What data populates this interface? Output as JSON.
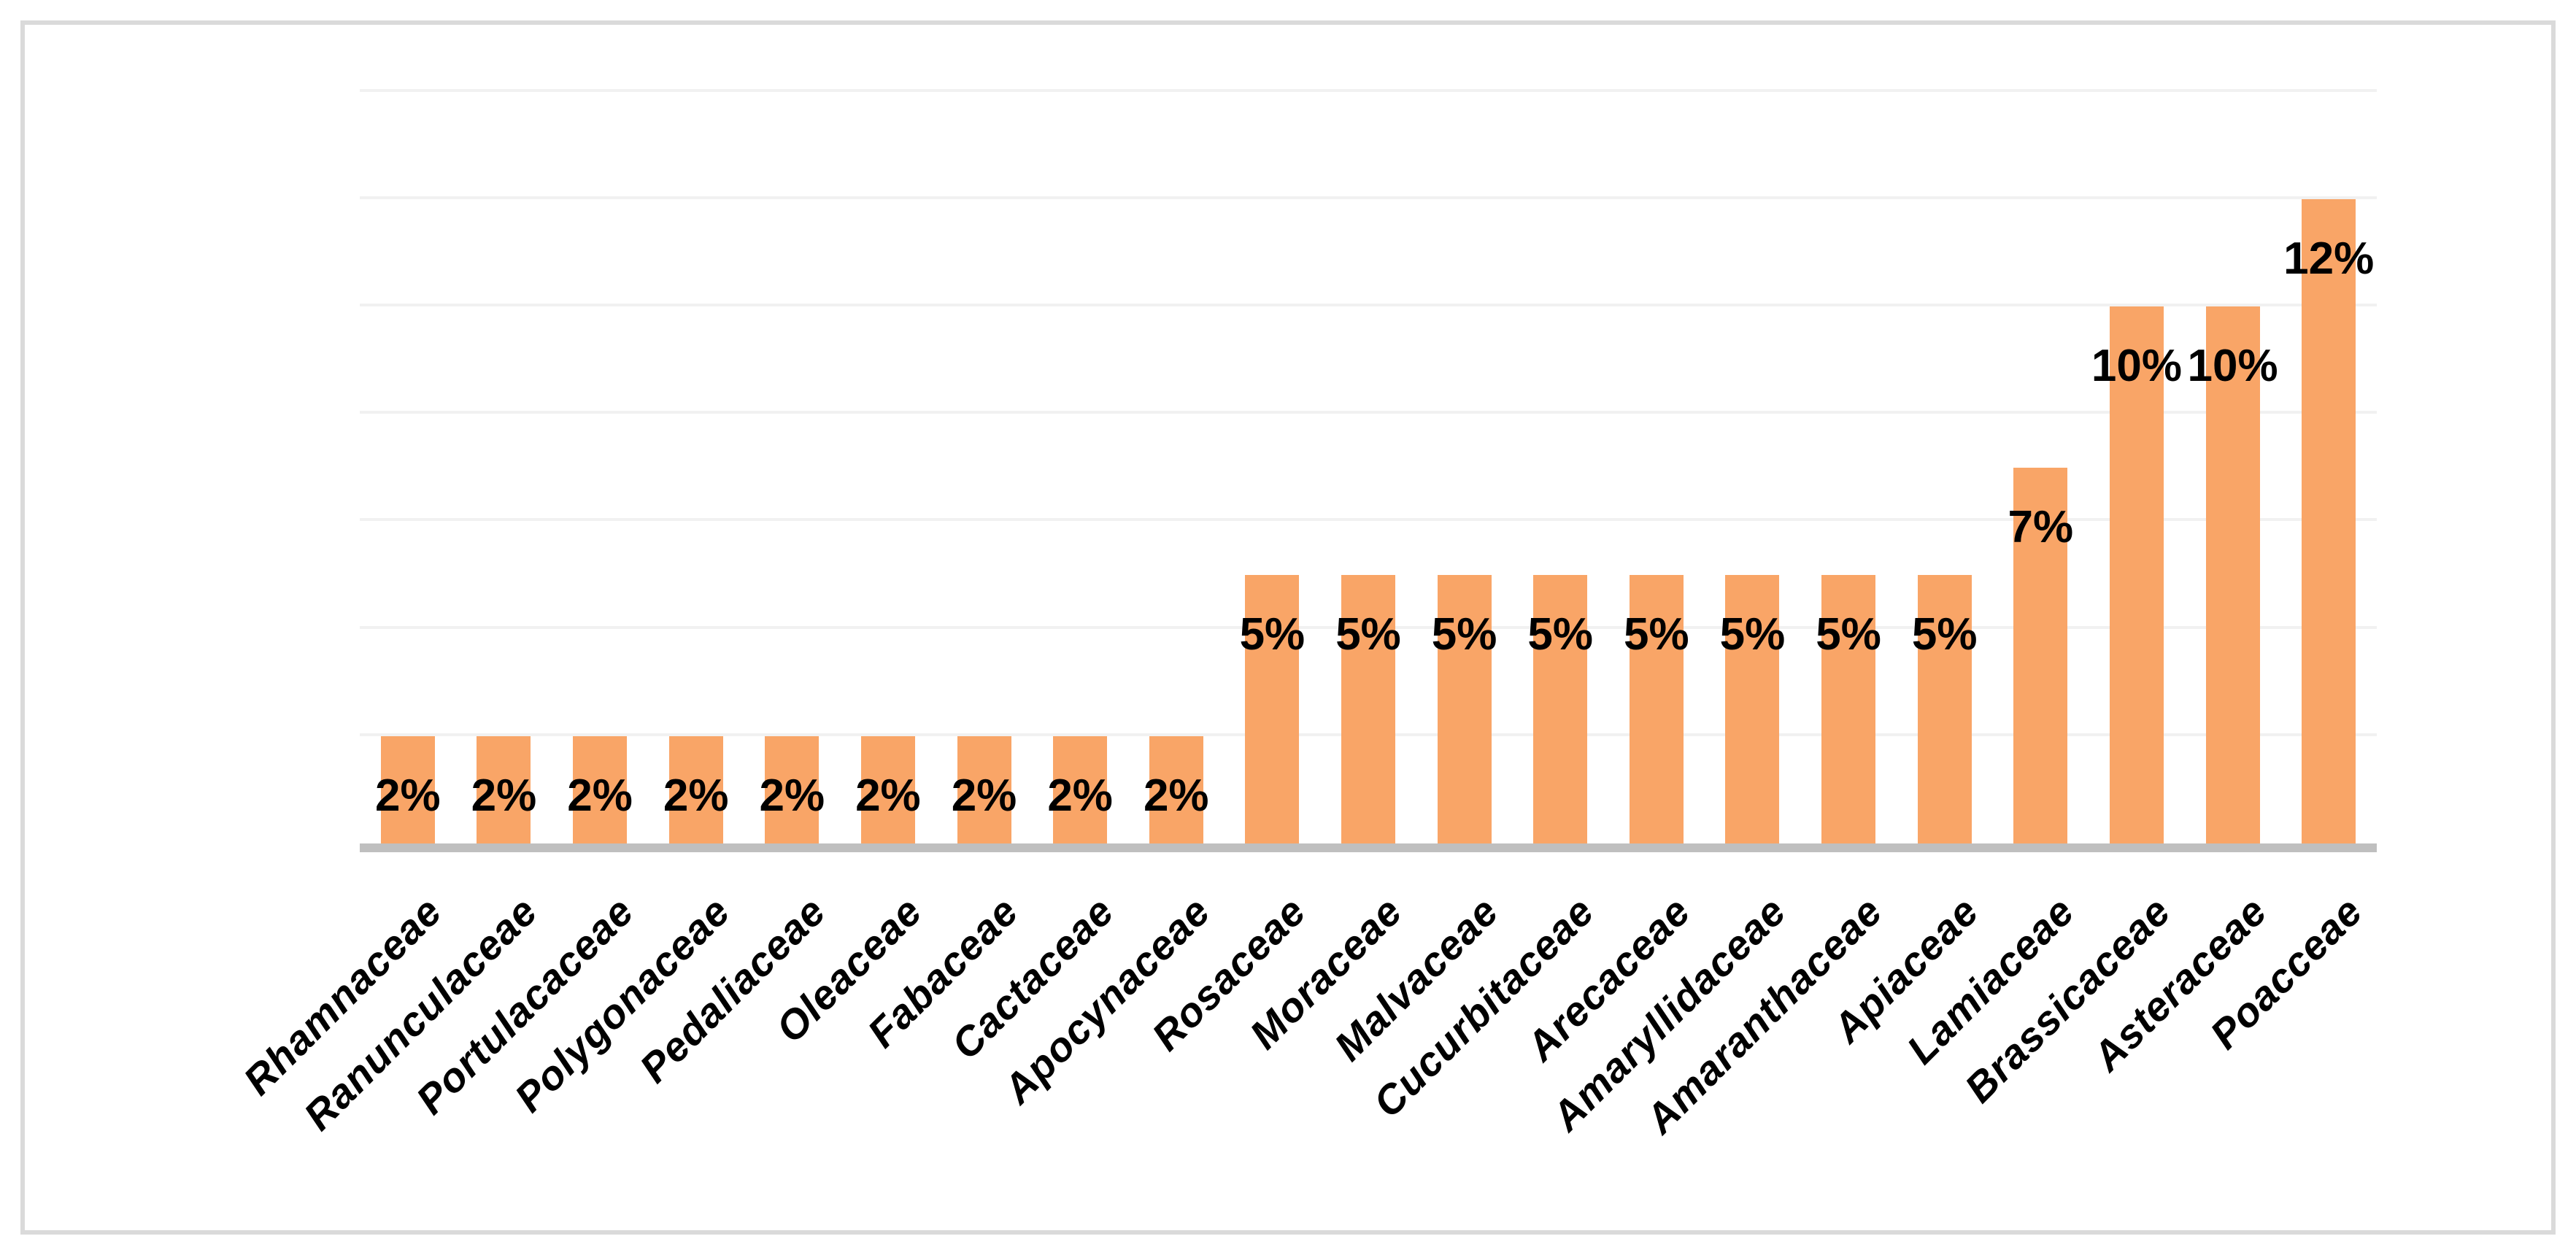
{
  "chart_data": {
    "type": "bar",
    "title": "",
    "xlabel": "",
    "ylabel": "",
    "categories": [
      "Rhamnaceae",
      "Ranunculaceae",
      "Portulacaceae",
      "Polygonaceae",
      "Pedaliaceae",
      "Oleaceae",
      "Fabaceae",
      "Cactaceae",
      "Apocynaceae",
      "Rosaceae",
      "Moraceae",
      "Malvaceae",
      "Cucurbitaceae",
      "Arecaceae",
      "Amaryllidaceae",
      "Amaranthaceae",
      "Apiaceae",
      "Lamiaceae",
      "Brassicaceae",
      "Asteraceae",
      "Poacceae"
    ],
    "values": [
      2,
      2,
      2,
      2,
      2,
      2,
      2,
      2,
      2,
      5,
      5,
      5,
      5,
      5,
      5,
      5,
      5,
      7,
      10,
      10,
      12
    ],
    "data_labels": [
      "2%",
      "2%",
      "2%",
      "2%",
      "2%",
      "2%",
      "2%",
      "2%",
      "2%",
      "5%",
      "5%",
      "5%",
      "5%",
      "5%",
      "5%",
      "5%",
      "5%",
      "7%",
      "10%",
      "10%",
      "12%"
    ],
    "ylim": [
      0,
      14
    ],
    "gridline_step_percent": 2,
    "grid": true,
    "legend": false,
    "y_axis_tick_labels_visible": false,
    "data_label_position": "inside-end",
    "category_label_rotation_deg": 45,
    "colors": {
      "bar_fill": "#F9A567",
      "gridline": "#F1F1F1",
      "axis_line": "#BFBFBF",
      "frame_border": "#DADADA",
      "label_text": "#000000",
      "background": "#FFFFFF"
    }
  }
}
